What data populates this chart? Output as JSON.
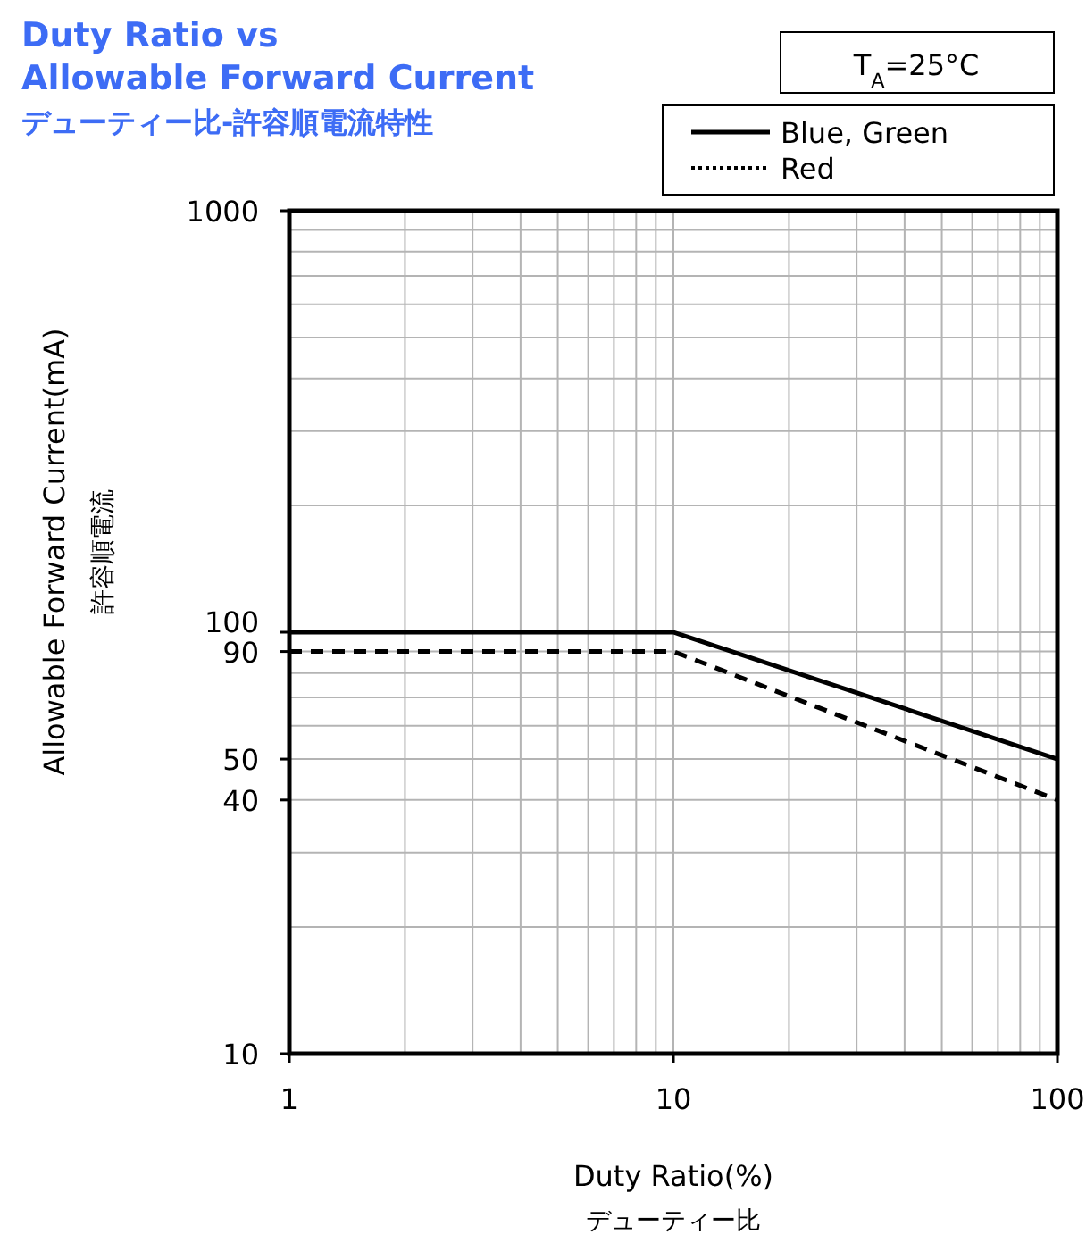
{
  "chart_data": {
    "type": "line",
    "title": "Duty Ratio vs\nAllowable Forward Current",
    "subtitle": "デューティー比-許容順電流特性",
    "xlabel": "Duty Ratio(%)\nデューティー比",
    "ylabel": "Allowable Forward Current(mA)\n許容順電流",
    "annotations": [
      "T$_{A}$=25°C"
    ],
    "log": "xy",
    "grid": true,
    "legend": "top right",
    "xlim": [
      1,
      100
    ],
    "xticks": [
      1,
      10,
      100
    ],
    "ylim": [
      10,
      1000
    ],
    "yticks": [
      10,
      40,
      50,
      90,
      100,
      1000
    ],
    "series": [
      {
        "name": "Blue, Green",
        "color": "#000000",
        "line_style": "solid",
        "x": [
          1,
          10,
          100
        ],
        "values": [
          100,
          100,
          50
        ]
      },
      {
        "name": "Red",
        "color": "#000000",
        "line_style": "dashed",
        "x": [
          1,
          10,
          100
        ],
        "values": [
          90,
          90,
          40
        ]
      }
    ]
  }
}
